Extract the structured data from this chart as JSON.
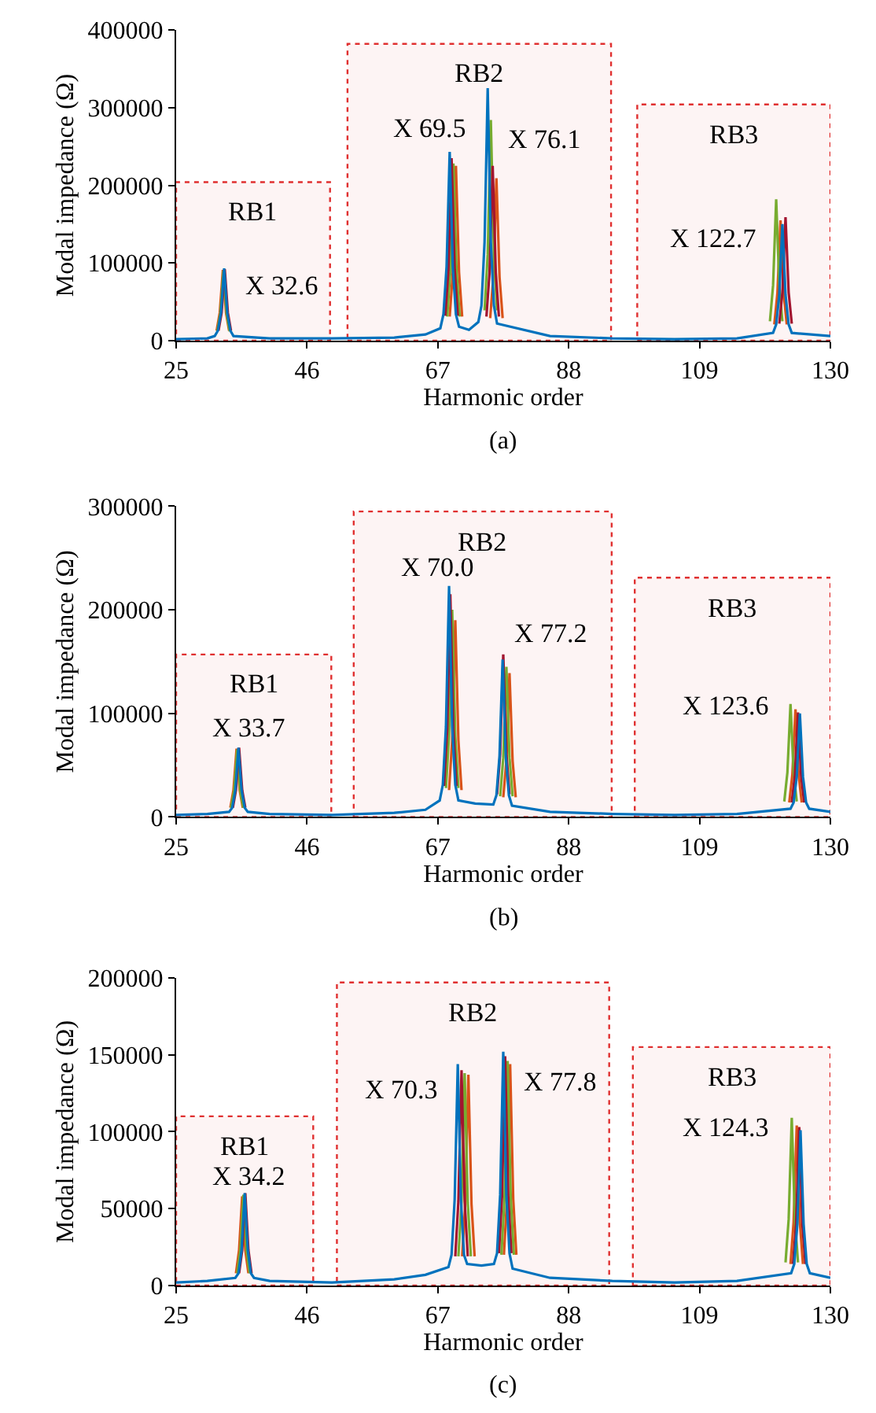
{
  "chart_data": [
    {
      "type": "line",
      "xlabel": "Harmonic order",
      "ylabel": "Modal impedance (Ω)",
      "xlim": [
        25,
        130
      ],
      "xticks": [
        25,
        46,
        67,
        88,
        109,
        130
      ],
      "ylim": [
        0,
        400000
      ],
      "yticks": [
        0,
        100000,
        200000,
        300000,
        400000
      ],
      "grid": false,
      "marker": "none",
      "line_style": "solid",
      "series": [
        {
          "color": "#d95319",
          "x": [
            31.5,
            32.0,
            32.5,
            33.0,
            33.5,
            50,
            68.9,
            69.4,
            69.9,
            70.4,
            70.9,
            73,
            75.4,
            75.9,
            76.4,
            76.9,
            77.4,
            100,
            121.0,
            121.5,
            122.0,
            122.5,
            123.0
          ],
          "values": [
            13000,
            36000,
            91000,
            36000,
            13000,
            null,
            31000,
            88000,
            225000,
            88000,
            31000,
            null,
            29000,
            82000,
            209000,
            82000,
            29000,
            null,
            21000,
            61000,
            155000,
            61000,
            21000
          ]
        },
        {
          "color": "#77ac30",
          "x": [
            31.6,
            32.1,
            32.6,
            33.1,
            33.6,
            50,
            68.5,
            69.0,
            69.5,
            70.0,
            70.5,
            73,
            74.5,
            75.0,
            75.5,
            76.0,
            76.5,
            100,
            120.3,
            120.8,
            121.3,
            121.8,
            122.3
          ],
          "values": [
            12000,
            35000,
            90000,
            35000,
            12000,
            null,
            31000,
            89000,
            228000,
            89000,
            31000,
            null,
            39000,
            111000,
            284000,
            111000,
            39000,
            null,
            25000,
            71000,
            182000,
            71000,
            25000
          ]
        },
        {
          "color": "#a2142f",
          "x": [
            31.8,
            32.3,
            32.8,
            33.3,
            33.8,
            50,
            68.2,
            68.7,
            69.2,
            69.7,
            70.2,
            73,
            74.8,
            75.3,
            75.8,
            76.3,
            76.8,
            100,
            121.8,
            122.3,
            122.8,
            123.3,
            123.8
          ],
          "values": [
            13000,
            36000,
            92000,
            36000,
            13000,
            null,
            32000,
            92000,
            235000,
            92000,
            32000,
            null,
            31000,
            88000,
            225000,
            88000,
            31000,
            null,
            22000,
            62000,
            159000,
            62000,
            22000
          ]
        },
        {
          "color": "#0072bd",
          "x": [
            25,
            30,
            31.2,
            31.7,
            32.2,
            32.7,
            33.2,
            33.7,
            34.2,
            40,
            50,
            60,
            65,
            67.4,
            67.9,
            68.4,
            68.9,
            69.4,
            69.9,
            70.4,
            72,
            73.5,
            74.0,
            74.5,
            75.0,
            75.5,
            76.0,
            76.5,
            85,
            95,
            105,
            115,
            120.8,
            121.3,
            121.8,
            122.3,
            122.8,
            123.3,
            123.8,
            130
          ],
          "values": [
            2000,
            3000,
            6000,
            13000,
            36000,
            93000,
            36000,
            13000,
            6000,
            3000,
            3000,
            4000,
            8000,
            16000,
            34000,
            95000,
            243000,
            95000,
            34000,
            18000,
            14000,
            24000,
            45000,
            127000,
            325000,
            127000,
            45000,
            22000,
            6000,
            3000,
            2000,
            3000,
            10000,
            21000,
            59000,
            150000,
            59000,
            21000,
            10000,
            6000
          ]
        }
      ],
      "bands": [
        {
          "axis": "x",
          "from": 25,
          "to": 49.7,
          "label": "RB1",
          "color": "#e03030"
        },
        {
          "axis": "x",
          "from": 52.5,
          "to": 94.8,
          "label": "RB2",
          "color": "#e03030"
        },
        {
          "axis": "x",
          "from": 99.0,
          "to": 130,
          "label": "RB3",
          "color": "#e03030"
        }
      ],
      "annotations": [
        {
          "text": "X 32.6",
          "x": 32.7,
          "y": 93000
        },
        {
          "text": "X 69.5",
          "x": 68.9,
          "y": 243000
        },
        {
          "text": "X 76.1",
          "x": 75.0,
          "y": 325000
        },
        {
          "text": "X 122.7",
          "x": 121.3,
          "y": 182000
        },
        "(a)"
      ]
    },
    {
      "type": "line",
      "xlabel": "Harmonic order",
      "ylabel": "Modal impedance (Ω)",
      "xlim": [
        25,
        130
      ],
      "xticks": [
        25,
        46,
        67,
        88,
        109,
        130
      ],
      "ylim": [
        0,
        300000
      ],
      "yticks": [
        0,
        100000,
        200000,
        300000
      ],
      "grid": false,
      "marker": "none",
      "line_style": "solid",
      "series": [
        {
          "color": "#d95319",
          "x": [
            33.7,
            34.2,
            34.7,
            35.2,
            35.7,
            50,
            68.8,
            69.3,
            69.8,
            70.3,
            70.8,
            73,
            77.5,
            78.0,
            78.5,
            79.0,
            79.5,
            100,
            123.4,
            123.9,
            124.4,
            124.9,
            125.4
          ],
          "values": [
            9000,
            26000,
            66000,
            26000,
            9000,
            null,
            26000,
            74000,
            190000,
            74000,
            26000,
            null,
            19000,
            54000,
            139000,
            54000,
            19000,
            null,
            14000,
            41000,
            104000,
            41000,
            14000
          ]
        },
        {
          "color": "#77ac30",
          "x": [
            33.8,
            34.3,
            34.8,
            35.3,
            35.8,
            50,
            68.3,
            68.8,
            69.3,
            69.8,
            70.3,
            73,
            77.0,
            77.5,
            78.0,
            78.5,
            79.0,
            100,
            122.6,
            123.1,
            123.6,
            124.1,
            124.6
          ],
          "values": [
            9000,
            25000,
            65000,
            25000,
            9000,
            null,
            28000,
            78000,
            200000,
            78000,
            28000,
            null,
            20000,
            57000,
            145000,
            57000,
            20000,
            null,
            15000,
            43000,
            109000,
            43000,
            15000
          ]
        },
        {
          "color": "#a2142f",
          "x": [
            34.1,
            34.6,
            35.1,
            35.6,
            36.1,
            50,
            68.0,
            68.5,
            69.0,
            69.5,
            70.0,
            73,
            76.5,
            77.0,
            77.5,
            78.0,
            78.5,
            100,
            123.8,
            124.3,
            124.8,
            125.3,
            125.8
          ],
          "values": [
            9000,
            26000,
            67000,
            26000,
            9000,
            null,
            30000,
            84000,
            215000,
            84000,
            30000,
            null,
            22000,
            61000,
            157000,
            61000,
            22000,
            null,
            14000,
            40000,
            101000,
            40000,
            14000
          ]
        },
        {
          "color": "#0072bd",
          "x": [
            25,
            30,
            33.5,
            34.0,
            34.5,
            35.0,
            35.5,
            36.0,
            36.5,
            40,
            50,
            60,
            65,
            67.3,
            67.8,
            68.3,
            68.8,
            69.3,
            69.8,
            70.3,
            73,
            75.9,
            76.4,
            76.9,
            77.4,
            77.9,
            78.4,
            78.9,
            85,
            95,
            105,
            115,
            123.6,
            124.1,
            124.6,
            125.1,
            125.6,
            126.1,
            126.6,
            130
          ],
          "values": [
            2000,
            3000,
            5000,
            9000,
            26000,
            67000,
            26000,
            9000,
            5000,
            3000,
            2000,
            4000,
            7000,
            16000,
            31000,
            87000,
            223000,
            87000,
            31000,
            16000,
            13000,
            12000,
            21000,
            59000,
            152000,
            59000,
            21000,
            11000,
            5000,
            3000,
            2000,
            3000,
            8000,
            14000,
            39000,
            100000,
            39000,
            14000,
            8000,
            5000
          ]
        }
      ],
      "bands": [
        {
          "axis": "x",
          "from": 25,
          "to": 49.9,
          "label": "RB1",
          "color": "#e03030"
        },
        {
          "axis": "x",
          "from": 53.5,
          "to": 94.9,
          "label": "RB2",
          "color": "#e03030"
        },
        {
          "axis": "x",
          "from": 98.6,
          "to": 130,
          "label": "RB3",
          "color": "#e03030"
        }
      ],
      "annotations": [
        {
          "text": "X 33.7",
          "x": 35.0,
          "y": 67000
        },
        {
          "text": "X 70.0",
          "x": 68.8,
          "y": 223000
        },
        {
          "text": "X 77.2",
          "x": 77.5,
          "y": 157000
        },
        {
          "text": "X 123.6",
          "x": 123.6,
          "y": 109000
        },
        "(b)"
      ]
    },
    {
      "type": "line",
      "xlabel": "Harmonic order",
      "ylabel": "Modal impedance (Ω)",
      "xlim": [
        25,
        130
      ],
      "xticks": [
        25,
        46,
        67,
        88,
        109,
        130
      ],
      "ylim": [
        0,
        200000
      ],
      "yticks": [
        0,
        50000,
        100000,
        150000,
        200000
      ],
      "grid": false,
      "marker": "none",
      "line_style": "solid",
      "series": [
        {
          "color": "#d95319",
          "x": [
            34.6,
            35.1,
            35.6,
            36.1,
            36.6,
            50,
            70.9,
            71.4,
            71.9,
            72.4,
            72.9,
            75,
            77.6,
            78.1,
            78.6,
            79.1,
            79.6,
            100,
            123.6,
            124.1,
            124.6,
            125.1,
            125.6
          ],
          "values": [
            8000,
            23000,
            58000,
            23000,
            8000,
            null,
            19000,
            53000,
            137000,
            53000,
            19000,
            null,
            20000,
            56000,
            144000,
            56000,
            20000,
            null,
            14000,
            41000,
            104000,
            41000,
            14000
          ]
        },
        {
          "color": "#77ac30",
          "x": [
            34.8,
            35.3,
            35.8,
            36.3,
            36.8,
            50,
            70.3,
            70.8,
            71.3,
            71.8,
            72.3,
            75,
            77.2,
            77.7,
            78.2,
            78.7,
            79.2,
            100,
            122.8,
            123.3,
            123.8,
            124.3,
            124.8
          ],
          "values": [
            8000,
            23000,
            59000,
            23000,
            8000,
            null,
            19000,
            54000,
            138000,
            54000,
            19000,
            null,
            20000,
            57000,
            146000,
            57000,
            20000,
            null,
            15000,
            43000,
            109000,
            43000,
            15000
          ]
        },
        {
          "color": "#a2142f",
          "x": [
            35.1,
            35.6,
            36.1,
            36.6,
            37.1,
            50,
            69.8,
            70.3,
            70.8,
            71.3,
            71.8,
            75,
            76.8,
            77.3,
            77.8,
            78.3,
            78.8,
            100,
            124.0,
            124.5,
            125.0,
            125.5,
            126.0
          ],
          "values": [
            8000,
            23000,
            60000,
            23000,
            8000,
            null,
            19000,
            55000,
            140000,
            55000,
            19000,
            null,
            21000,
            58000,
            149000,
            58000,
            21000,
            null,
            14000,
            40000,
            103000,
            40000,
            14000
          ]
        },
        {
          "color": "#0072bd",
          "x": [
            25,
            30,
            34.5,
            35.0,
            35.5,
            36.0,
            36.5,
            37.0,
            37.5,
            40,
            50,
            60,
            65,
            68.7,
            69.2,
            69.7,
            70.2,
            70.7,
            71.2,
            71.7,
            74,
            76.0,
            76.5,
            77.0,
            77.5,
            78.0,
            78.5,
            79.0,
            85,
            95,
            105,
            115,
            123.7,
            124.2,
            124.7,
            125.2,
            125.7,
            126.2,
            126.7,
            130
          ],
          "values": [
            2000,
            3000,
            5000,
            8000,
            23000,
            60000,
            23000,
            8000,
            5000,
            3000,
            2000,
            4000,
            7000,
            12000,
            20000,
            56000,
            144000,
            56000,
            20000,
            14000,
            13000,
            14000,
            21000,
            59000,
            152000,
            59000,
            21000,
            11000,
            5000,
            3000,
            2000,
            3000,
            8000,
            14000,
            40000,
            101000,
            40000,
            14000,
            8000,
            5000
          ]
        }
      ],
      "bands": [
        {
          "axis": "x",
          "from": 25,
          "to": 47.0,
          "label": "RB1",
          "color": "#e03030"
        },
        {
          "axis": "x",
          "from": 50.8,
          "to": 94.5,
          "label": "RB2",
          "color": "#e03030"
        },
        {
          "axis": "x",
          "from": 98.3,
          "to": 130,
          "label": "RB3",
          "color": "#e03030"
        }
      ],
      "annotations": [
        {
          "text": "X 34.2",
          "x": 36.0,
          "y": 60000
        },
        {
          "text": "X 70.3",
          "x": 70.2,
          "y": 144000
        },
        {
          "text": "X 77.8",
          "x": 77.5,
          "y": 152000
        },
        {
          "text": "X 124.3",
          "x": 123.8,
          "y": 109000
        },
        "(c)"
      ]
    }
  ]
}
